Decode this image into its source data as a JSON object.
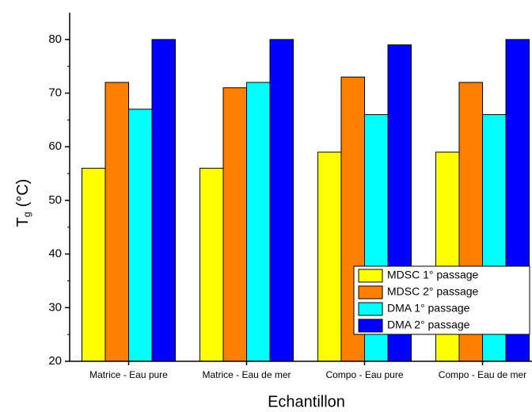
{
  "chart_data": {
    "type": "bar",
    "xlabel": "Echantillon",
    "ylabel": {
      "symbol": "T",
      "subscript": "g",
      "unit": "(°C)"
    },
    "categories": [
      "Matrice - Eau pure",
      "Matrice - Eau de mer",
      "Compo - Eau pure",
      "Compo - Eau de mer"
    ],
    "series": [
      {
        "name": "MDSC 1° passage",
        "color": "#ffff00",
        "values": [
          56,
          56,
          59,
          59
        ]
      },
      {
        "name": "MDSC 2° passage",
        "color": "#ff8000",
        "values": [
          72,
          71,
          73,
          72
        ]
      },
      {
        "name": "DMA 1° passage",
        "color": "#00ffff",
        "values": [
          67,
          72,
          66,
          66
        ]
      },
      {
        "name": "DMA 2° passage",
        "color": "#0000ff",
        "values": [
          80,
          80,
          79,
          80
        ]
      }
    ],
    "ylim": [
      20,
      85
    ],
    "yticks": [
      20,
      30,
      40,
      50,
      60,
      70,
      80
    ],
    "legend": "lower-right",
    "grid": false
  }
}
